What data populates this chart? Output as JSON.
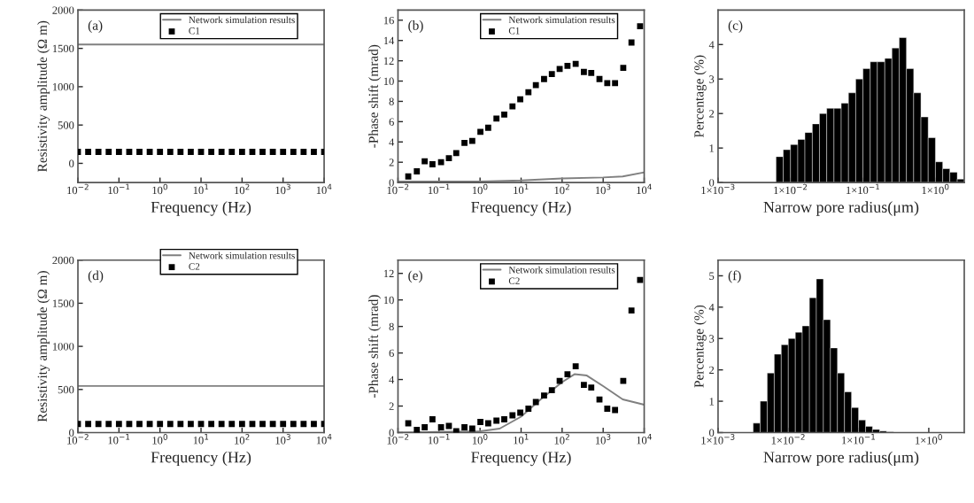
{
  "chart_data": [
    {
      "type": "line",
      "ylabel": "Resistivity amplitude (Ω m)",
      "xlabel": "Frequency (Hz)",
      "annotations": [
        "(a)"
      ],
      "log": "x",
      "legend": "top right",
      "xlim": [
        0.01,
        10000
      ],
      "ylim": [
        -250,
        2000
      ],
      "yticks": [
        0,
        500,
        1000,
        1500,
        2000
      ],
      "xticks": [
        {
          "value": 0.01,
          "label": "10$^{−2}$"
        },
        {
          "value": 0.1,
          "label": "10$^{−1}$"
        },
        {
          "value": 1,
          "label": "10$^{0}$"
        },
        {
          "value": 10,
          "label": "10$^{1}$"
        },
        {
          "value": 100,
          "label": "10$^{2}$"
        },
        {
          "value": 1000,
          "label": "10$^{3}$"
        },
        {
          "value": 10000,
          "label": "10$^{4}$"
        }
      ],
      "series": [
        {
          "name": "Network simulation results",
          "type": "line",
          "color": "#808080",
          "x": [
            0.01,
            10000
          ],
          "values": [
            1550,
            1550
          ]
        },
        {
          "name": "C1",
          "type": "scatter",
          "marker": "square",
          "color": "#000000",
          "x": [
            0.01,
            0.0178,
            0.0316,
            0.0562,
            0.1,
            0.178,
            0.316,
            0.562,
            1,
            1.78,
            3.16,
            5.62,
            10,
            17.8,
            31.6,
            56.2,
            100,
            178,
            316,
            562,
            1000,
            1780,
            3160,
            5620,
            10000
          ],
          "values": [
            150,
            150,
            150,
            150,
            150,
            150,
            150,
            150,
            150,
            150,
            150,
            150,
            150,
            150,
            150,
            150,
            150,
            150,
            150,
            150,
            150,
            150,
            150,
            150,
            150
          ]
        }
      ]
    },
    {
      "type": "line",
      "ylabel": "-Phase shift (mrad)",
      "xlabel": "Frequency (Hz)",
      "annotations": [
        "(b)"
      ],
      "log": "x",
      "legend": "top right",
      "xlim": [
        0.01,
        10000
      ],
      "ylim": [
        0,
        17
      ],
      "yticks": [
        0,
        2,
        4,
        6,
        8,
        10,
        12,
        14,
        16
      ],
      "xticks": [
        {
          "value": 0.01,
          "label": "10$^{−2}$"
        },
        {
          "value": 0.1,
          "label": "10$^{−1}$"
        },
        {
          "value": 1,
          "label": "10$^{0}$"
        },
        {
          "value": 10,
          "label": "10$^{1}$"
        },
        {
          "value": 100,
          "label": "10$^{2}$"
        },
        {
          "value": 1000,
          "label": "10$^{3}$"
        },
        {
          "value": 10000,
          "label": "10$^{4}$"
        }
      ],
      "series": [
        {
          "name": "Network simulation results",
          "type": "line",
          "color": "#808080",
          "x": [
            0.01,
            1,
            10,
            100,
            1000,
            3000,
            10000
          ],
          "values": [
            0.1,
            0.1,
            0.2,
            0.4,
            0.5,
            0.6,
            1.0
          ]
        },
        {
          "name": "C1",
          "type": "scatter",
          "marker": "square",
          "color": "#000000",
          "x": [
            0.0178,
            0.0288,
            0.0447,
            0.0692,
            0.112,
            0.174,
            0.263,
            0.417,
            0.646,
            1.02,
            1.58,
            2.51,
            3.89,
            6.17,
            9.55,
            15.1,
            22.9,
            36.3,
            56.2,
            87.1,
            135,
            214,
            339,
            513,
            813,
            1260,
            1950,
            3090,
            4900,
            7940
          ],
          "values": [
            0.6,
            1.1,
            2.1,
            1.8,
            2.0,
            2.4,
            2.9,
            3.9,
            4.1,
            5.0,
            5.4,
            6.3,
            6.7,
            7.5,
            8.2,
            8.9,
            9.6,
            10.2,
            10.7,
            11.2,
            11.5,
            11.7,
            10.9,
            10.8,
            10.2,
            9.8,
            9.8,
            11.3,
            13.8,
            15.4
          ]
        }
      ]
    },
    {
      "type": "histogram",
      "ylabel": "Percentage (%)",
      "xlabel": "Narrow pore radius(μm)",
      "annotations": [
        "(c)"
      ],
      "log": "x",
      "color": "#000000",
      "xlim": [
        0.001,
        2.5
      ],
      "ylim": [
        0,
        5
      ],
      "yticks": [
        0,
        1,
        2,
        3,
        4
      ],
      "xticks": [
        {
          "value": 0.001,
          "label": "1×10$^{−3}$"
        },
        {
          "value": 0.01,
          "label": "1×10$^{−2}$"
        },
        {
          "value": 0.1,
          "label": "1×10$^{−1}$"
        },
        {
          "value": 1,
          "label": "1×10$^{0}$"
        }
      ],
      "bins": [
        0.00631,
        0.00794,
        0.01,
        0.0126,
        0.0158,
        0.02,
        0.0251,
        0.0316,
        0.0398,
        0.0501,
        0.0631,
        0.0794,
        0.1,
        0.126,
        0.158,
        0.2,
        0.251,
        0.316,
        0.398,
        0.501,
        0.631,
        0.794,
        1,
        1.26,
        1.58,
        2,
        2.51
      ],
      "values": [
        0.75,
        0.95,
        1.1,
        1.25,
        1.45,
        1.7,
        2.0,
        2.15,
        2.15,
        2.3,
        2.6,
        3.0,
        3.3,
        3.5,
        3.5,
        3.6,
        3.9,
        4.2,
        3.3,
        2.6,
        1.9,
        1.3,
        0.6,
        0.4,
        0.3,
        0.1
      ]
    },
    {
      "type": "line",
      "ylabel": "Resistivity amplitude (Ω m)",
      "xlabel": "Frequency (Hz)",
      "annotations": [
        "(d)"
      ],
      "log": "x",
      "legend": "right",
      "xlim": [
        0.01,
        10000
      ],
      "ylim": [
        0,
        2000
      ],
      "yticks": [
        0,
        500,
        1000,
        1500,
        2000
      ],
      "xticks": [
        {
          "value": 0.01,
          "label": "10$^{−2}$"
        },
        {
          "value": 0.1,
          "label": "10$^{−1}$"
        },
        {
          "value": 1,
          "label": "10$^{0}$"
        },
        {
          "value": 10,
          "label": "10$^{1}$"
        },
        {
          "value": 100,
          "label": "10$^{2}$"
        },
        {
          "value": 1000,
          "label": "10$^{3}$"
        },
        {
          "value": 10000,
          "label": "10$^{4}$"
        }
      ],
      "series": [
        {
          "name": "Network simulation results",
          "type": "line",
          "color": "#808080",
          "x": [
            0.01,
            10000
          ],
          "values": [
            540,
            540
          ]
        },
        {
          "name": "C2",
          "type": "scatter",
          "marker": "square",
          "color": "#000000",
          "x": [
            0.01,
            0.0178,
            0.0316,
            0.0562,
            0.1,
            0.178,
            0.316,
            0.562,
            1,
            1.78,
            3.16,
            5.62,
            10,
            17.8,
            31.6,
            56.2,
            100,
            178,
            316,
            562,
            1000,
            1780,
            3160,
            5620,
            10000
          ],
          "values": [
            100,
            100,
            100,
            100,
            100,
            100,
            100,
            100,
            100,
            100,
            100,
            100,
            100,
            100,
            100,
            100,
            100,
            100,
            100,
            100,
            100,
            100,
            100,
            100,
            100
          ]
        }
      ]
    },
    {
      "type": "line",
      "ylabel": "-Phase shift (mrad)",
      "xlabel": "Frequency (Hz)",
      "annotations": [
        "(e)"
      ],
      "log": "x",
      "legend": "top right",
      "xlim": [
        0.01,
        10000
      ],
      "ylim": [
        0,
        13
      ],
      "yticks": [
        0,
        2,
        4,
        6,
        8,
        10,
        12
      ],
      "xticks": [
        {
          "value": 0.01,
          "label": "10$^{−2}$"
        },
        {
          "value": 0.1,
          "label": "10$^{−1}$"
        },
        {
          "value": 1,
          "label": "10$^{0}$"
        },
        {
          "value": 10,
          "label": "10$^{1}$"
        },
        {
          "value": 100,
          "label": "10$^{2}$"
        },
        {
          "value": 1000,
          "label": "10$^{3}$"
        },
        {
          "value": 10000,
          "label": "10$^{4}$"
        }
      ],
      "series": [
        {
          "name": "Network simulation results",
          "type": "line",
          "color": "#808080",
          "x": [
            0.01,
            1,
            3,
            10,
            30,
            100,
            200,
            400,
            1000,
            3000,
            10000
          ],
          "values": [
            0,
            0.1,
            0.3,
            1.2,
            2.5,
            3.8,
            4.4,
            4.3,
            3.5,
            2.5,
            2.1
          ]
        },
        {
          "name": "C2",
          "type": "scatter",
          "marker": "square",
          "color": "#000000",
          "x": [
            0.0178,
            0.0288,
            0.0447,
            0.0692,
            0.112,
            0.174,
            0.263,
            0.417,
            0.646,
            1.02,
            1.58,
            2.51,
            3.89,
            6.17,
            9.55,
            15.1,
            22.9,
            36.3,
            56.2,
            87.1,
            135,
            214,
            339,
            513,
            813,
            1260,
            1950,
            3090,
            4900,
            7940
          ],
          "values": [
            0.7,
            0.2,
            0.4,
            1.0,
            0.4,
            0.5,
            0.1,
            0.4,
            0.3,
            0.8,
            0.7,
            0.9,
            1.0,
            1.3,
            1.5,
            1.8,
            2.3,
            2.8,
            3.2,
            3.9,
            4.4,
            5.0,
            3.6,
            3.4,
            2.5,
            1.8,
            1.7,
            3.9,
            9.2,
            11.5
          ]
        }
      ]
    },
    {
      "type": "histogram",
      "ylabel": "Percentage (%)",
      "xlabel": "Narrow pore radius(μm)",
      "annotations": [
        "(f)"
      ],
      "log": "x",
      "color": "#000000",
      "xlim": [
        0.001,
        3.2
      ],
      "ylim": [
        0,
        5.5
      ],
      "yticks": [
        0,
        1,
        2,
        3,
        4,
        5
      ],
      "xticks": [
        {
          "value": 0.001,
          "label": "1×10$^{−3}$"
        },
        {
          "value": 0.01,
          "label": "1×10$^{−2}$"
        },
        {
          "value": 0.1,
          "label": "1×10$^{−1}$"
        },
        {
          "value": 1,
          "label": "1×10$^{0}$"
        }
      ],
      "bins": [
        0.00316,
        0.00398,
        0.00501,
        0.00631,
        0.00794,
        0.01,
        0.0126,
        0.0158,
        0.02,
        0.0251,
        0.0316,
        0.0398,
        0.0501,
        0.0631,
        0.0794,
        0.1,
        0.126,
        0.158,
        0.2,
        0.251,
        0.316
      ],
      "values": [
        0.3,
        1.0,
        1.9,
        2.5,
        2.8,
        3.0,
        3.2,
        3.4,
        4.3,
        4.9,
        3.6,
        2.7,
        1.9,
        1.3,
        0.8,
        0.4,
        0.2,
        0.1,
        0.05,
        0.02
      ]
    }
  ]
}
